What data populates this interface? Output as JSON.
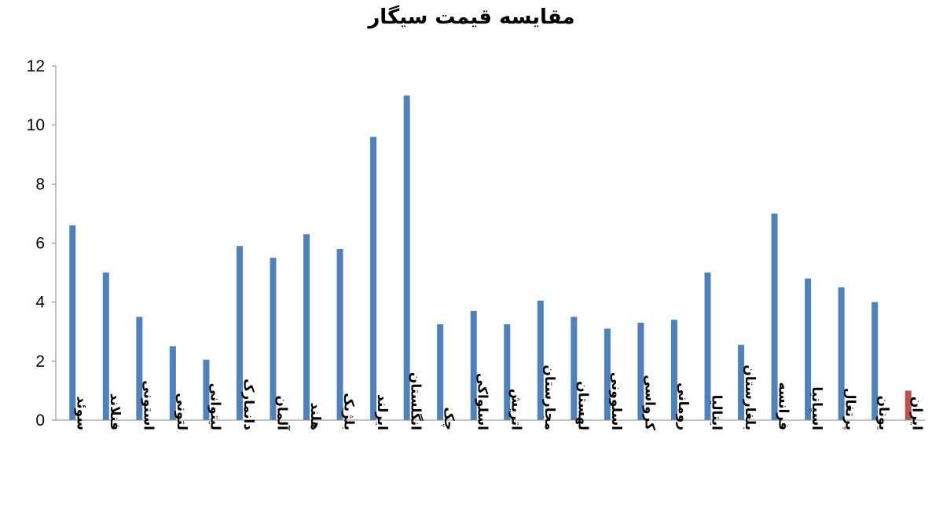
{
  "chart_data": {
    "type": "bar",
    "title": "مقایسه قیمت سیگار",
    "xlabel": "",
    "ylabel": "",
    "ylim": [
      0,
      12
    ],
    "yticks": [
      0,
      2,
      4,
      6,
      8,
      10,
      12
    ],
    "grid": false,
    "legend": "none",
    "categories": [
      "سوئد",
      "فنلاند",
      "استونی",
      "لتونی",
      "لیتوانی",
      "دانمارک",
      "آلمان",
      "هلند",
      "بلژیک",
      "ایرلند",
      "انگلستان",
      "چک",
      "اسلواکی",
      "اتریش",
      "مجارستان",
      "لهستان",
      "اسلوونی",
      "کرواسی",
      "رومانی",
      "ایتالیا",
      "بلغارستان",
      "فرانسه",
      "اسپانیا",
      "پرتغال",
      "یونان",
      "ایران"
    ],
    "values": [
      6.6,
      5.0,
      3.5,
      2.5,
      2.05,
      5.9,
      5.5,
      6.3,
      5.8,
      9.6,
      11.0,
      3.25,
      3.7,
      3.25,
      4.05,
      3.5,
      3.1,
      3.3,
      3.4,
      5.0,
      2.55,
      7.0,
      4.8,
      4.5,
      4.0,
      1.0
    ],
    "colors": {
      "default": "#4F81BD",
      "highlight": "#C0504D",
      "highlight_category": "ایران"
    }
  }
}
